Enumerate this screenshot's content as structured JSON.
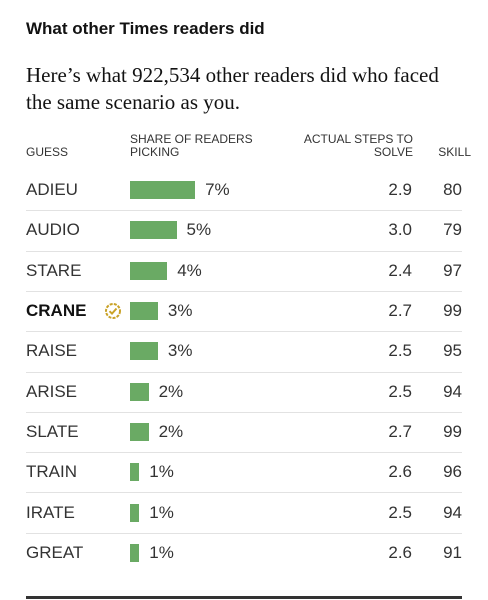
{
  "header": {
    "title": "What other Times readers did",
    "subtitle": "Here’s what 922,534 other readers did who faced the same scenario as you."
  },
  "table": {
    "columns": [
      "GUESS",
      "SHARE OF READERS PICKING",
      "ACTUAL STEPS TO SOLVE",
      "SKILL"
    ],
    "bar_color": "#6aaa64",
    "rows": [
      {
        "guess": "ADIEU",
        "share": 7,
        "share_label": "7%",
        "steps": "2.9",
        "skill": 80
      },
      {
        "guess": "AUDIO",
        "share": 5,
        "share_label": "5%",
        "steps": "3.0",
        "skill": 79
      },
      {
        "guess": "STARE",
        "share": 4,
        "share_label": "4%",
        "steps": "2.4",
        "skill": 97
      },
      {
        "guess": "CRANE",
        "share": 3,
        "share_label": "3%",
        "steps": "2.7",
        "skill": 99,
        "highlight": true
      },
      {
        "guess": "RAISE",
        "share": 3,
        "share_label": "3%",
        "steps": "2.5",
        "skill": 95
      },
      {
        "guess": "ARISE",
        "share": 2,
        "share_label": "2%",
        "steps": "2.5",
        "skill": 94
      },
      {
        "guess": "SLATE",
        "share": 2,
        "share_label": "2%",
        "steps": "2.7",
        "skill": 99
      },
      {
        "guess": "TRAIN",
        "share": 1,
        "share_label": "1%",
        "steps": "2.6",
        "skill": 96
      },
      {
        "guess": "IRATE",
        "share": 1,
        "share_label": "1%",
        "steps": "2.5",
        "skill": 94
      },
      {
        "guess": "GREAT",
        "share": 1,
        "share_label": "1%",
        "steps": "2.6",
        "skill": 91
      }
    ]
  }
}
